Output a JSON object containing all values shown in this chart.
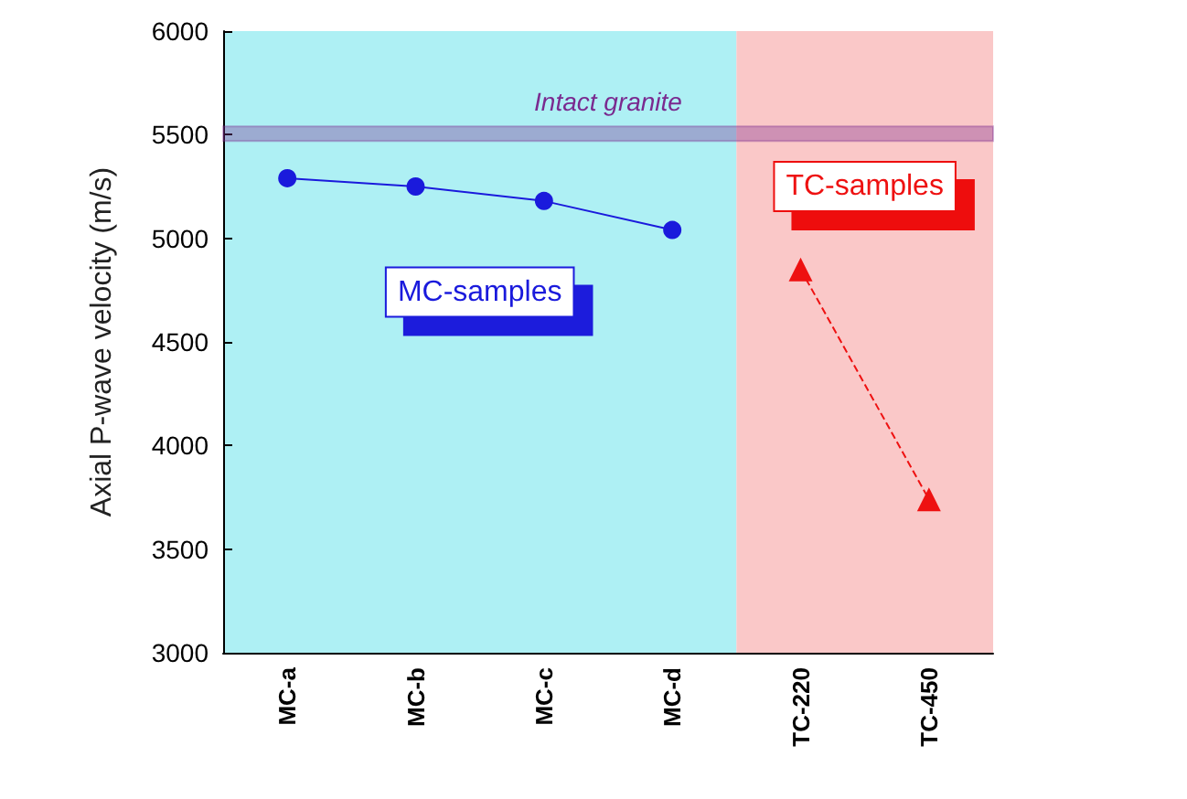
{
  "chart_data": {
    "type": "line",
    "ylabel": "Axial P-wave velocity (m/s)",
    "categories": [
      "MC-a",
      "MC-b",
      "MC-c",
      "MC-d",
      "TC-220",
      "TC-450"
    ],
    "series": [
      {
        "color": "#1a1adc",
        "values": [
          5290,
          5250,
          5180,
          5040,
          null,
          null
        ],
        "marker": "circle",
        "line_style": "solid"
      },
      {
        "color": "#ee1111",
        "values": [
          null,
          null,
          null,
          null,
          4850,
          3740
        ],
        "marker": "triangle",
        "line_style": "dashed"
      }
    ],
    "ylim": [
      3000,
      6000
    ],
    "yticks": [
      3000,
      3500,
      4000,
      4500,
      5000,
      5500,
      6000
    ],
    "bands": [
      {
        "axis": "y",
        "from": 5470,
        "to": 5540,
        "label": "Intact granite",
        "color": "#7a2a8f"
      },
      {
        "axis": "x",
        "from": "MC-a",
        "to": "MC-d",
        "label": "MC-samples",
        "color": "#aef0f4"
      },
      {
        "axis": "x",
        "from": "TC-220",
        "to": "TC-450",
        "label": "TC-samples",
        "color": "#fac8c8"
      }
    ]
  }
}
